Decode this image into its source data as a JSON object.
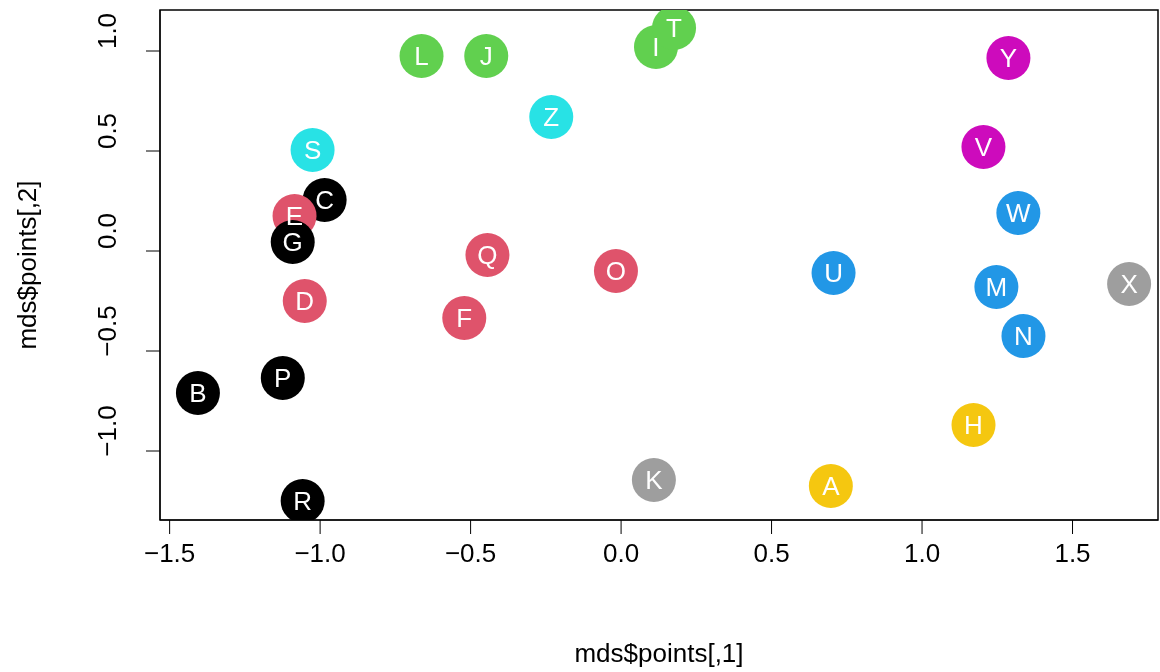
{
  "chart_data": {
    "type": "scatter",
    "xlabel": "mds$points[,1]",
    "ylabel": "mds$points[,2]",
    "x": [
      0.697,
      -1.406,
      -0.985,
      -1.051,
      -1.085,
      -0.521,
      -1.091,
      1.171,
      0.116,
      -0.448,
      0.109,
      -0.663,
      1.247,
      1.337,
      -0.017,
      -1.124,
      -0.444,
      -1.058,
      -1.025,
      0.176,
      0.706,
      1.204,
      1.32,
      1.688,
      1.287,
      -0.232
    ],
    "values": [
      -1.175,
      -0.71,
      0.255,
      -0.25,
      0.175,
      -0.335,
      0.045,
      -0.87,
      1.02,
      0.975,
      -1.145,
      0.975,
      -0.18,
      -0.425,
      -0.1,
      -0.635,
      -0.02,
      -1.25,
      0.505,
      1.115,
      -0.11,
      0.52,
      0.19,
      -0.165,
      0.965,
      0.67
    ],
    "value_labels": [
      "A",
      "B",
      "C",
      "D",
      "E",
      "F",
      "G",
      "H",
      "I",
      "J",
      "K",
      "L",
      "M",
      "N",
      "O",
      "P",
      "Q",
      "R",
      "S",
      "T",
      "U",
      "V",
      "W",
      "X",
      "Y",
      "Z"
    ],
    "colors": [
      "#f5c710",
      "#000000",
      "#000000",
      "#df536b",
      "#df536b",
      "#df536b",
      "#000000",
      "#f5c710",
      "#61d04f",
      "#61d04f",
      "#9e9e9e",
      "#61d04f",
      "#2297e6",
      "#2297e6",
      "#df536b",
      "#000000",
      "#df536b",
      "#000000",
      "#28e2e5",
      "#61d04f",
      "#2297e6",
      "#cd0bbc",
      "#2297e6",
      "#9e9e9e",
      "#cd0bbc",
      "#28e2e5"
    ],
    "marker": "circle",
    "grid": false,
    "legend": false,
    "xlim": [
      -1.532,
      1.784
    ],
    "ylim": [
      -1.345,
      1.205
    ],
    "xticks": [
      {
        "value": -1.5,
        "label": "−1.5"
      },
      {
        "value": -1.0,
        "label": "−1.0"
      },
      {
        "value": -0.5,
        "label": "−0.5"
      },
      {
        "value": 0,
        "label": "0.0"
      },
      0.5,
      {
        "value": 1,
        "label": "1.0"
      },
      1.5
    ],
    "yticks": [
      {
        "value": -1.0,
        "label": "−1.0"
      },
      {
        "value": -0.5,
        "label": "−0.5"
      },
      {
        "value": 0,
        "label": "0.0"
      },
      0.5,
      {
        "value": 1,
        "label": "1.0"
      }
    ]
  }
}
